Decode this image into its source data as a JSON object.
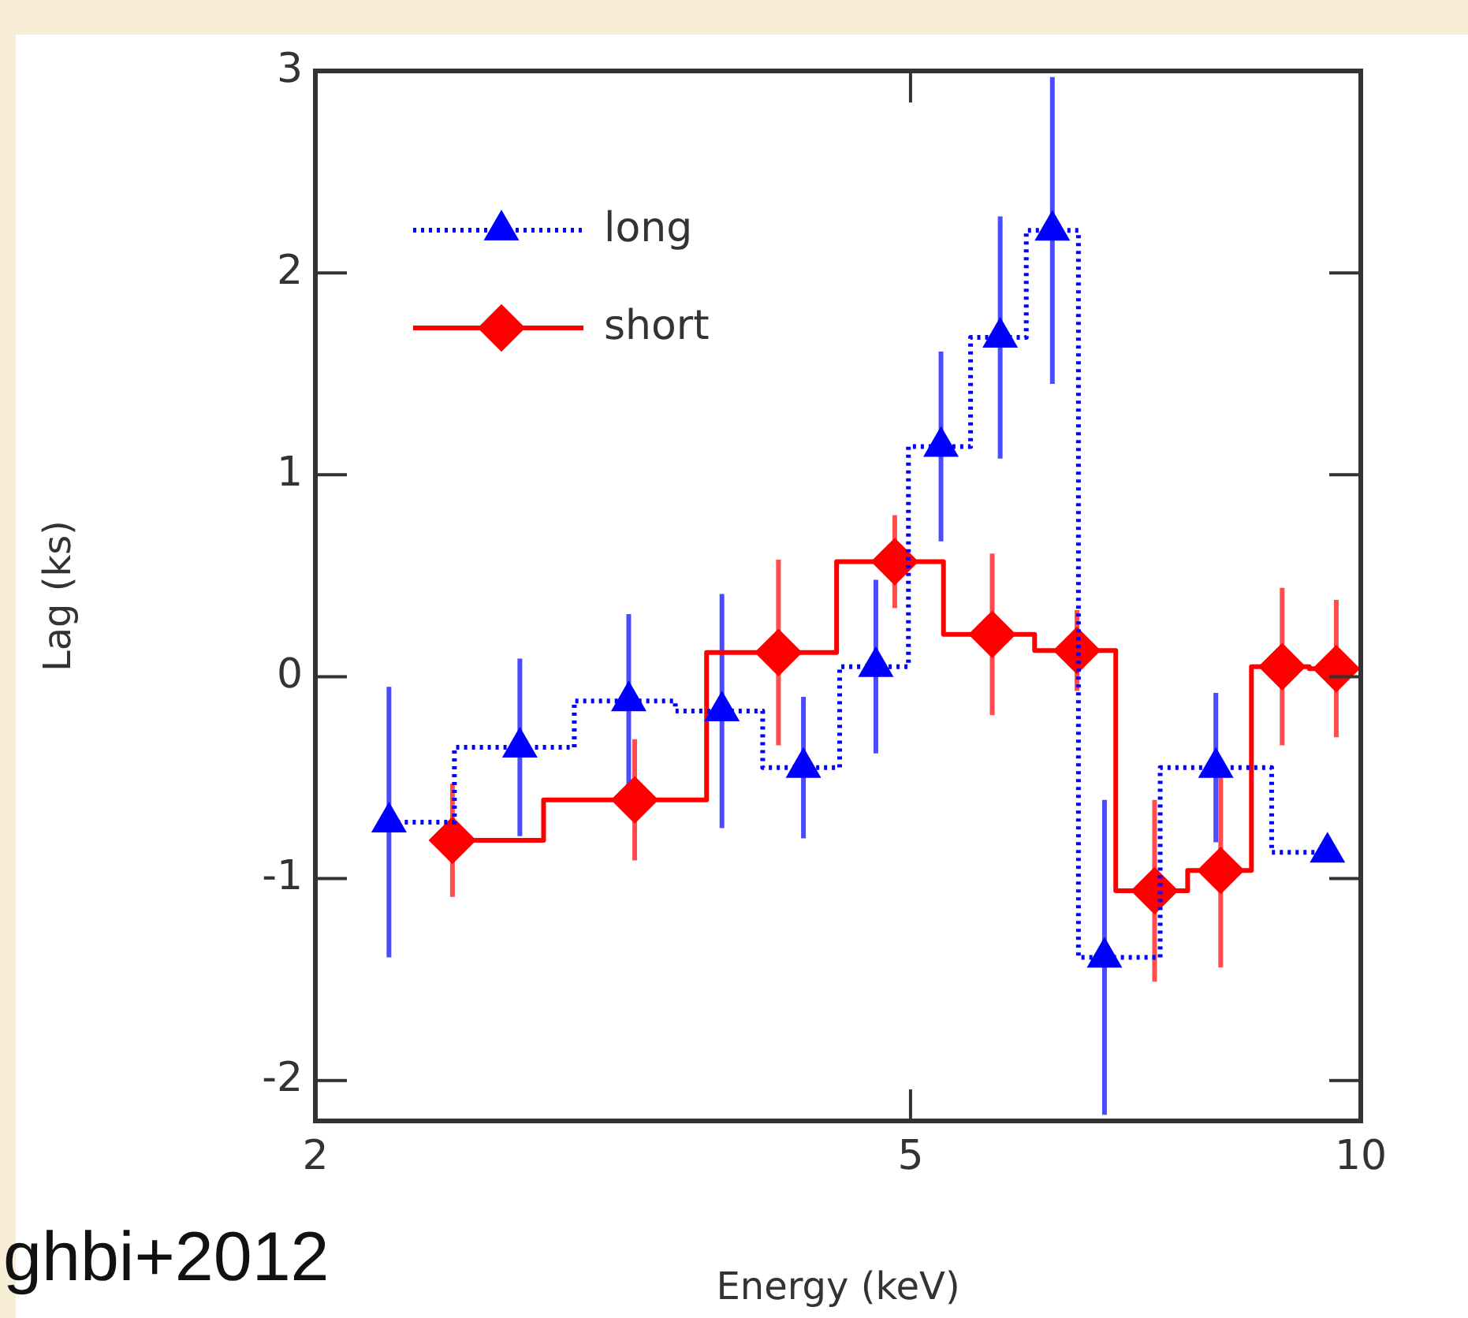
{
  "chart_data": {
    "type": "step",
    "xlabel": "Energy (keV)",
    "ylabel": "Lag (ks)",
    "log": "x",
    "xlim": [
      2,
      10
    ],
    "ylim": [
      -2.2,
      3
    ],
    "xticks": [
      2,
      5,
      10
    ],
    "yticks": [
      -2,
      -1,
      0,
      1,
      2,
      3
    ],
    "grid": false,
    "legend": "top left",
    "series": [
      {
        "name": "long",
        "color": "#0000ff",
        "marker": "triangle",
        "line_style": "dotted",
        "x": [
          2.24,
          2.74,
          3.24,
          3.74,
          4.24,
          4.74,
          5.24,
          5.74,
          6.22,
          6.74,
          8.0,
          9.5
        ],
        "values": [
          -0.72,
          -0.35,
          -0.12,
          -0.17,
          -0.45,
          0.05,
          1.14,
          1.68,
          2.21,
          -1.39,
          -0.45,
          -0.87
        ],
        "errors": [
          0.67,
          0.44,
          0.43,
          0.58,
          0.35,
          0.43,
          0.47,
          0.6,
          0.76,
          0.78,
          0.37,
          null
        ]
      },
      {
        "name": "short",
        "color": "#ff0000",
        "marker": "diamond",
        "line_style": "solid",
        "x": [
          2.47,
          3.27,
          4.08,
          4.88,
          5.67,
          6.46,
          7.28,
          8.06,
          8.86,
          9.63
        ],
        "values": [
          -0.81,
          -0.61,
          0.12,
          0.57,
          0.21,
          0.13,
          -1.06,
          -0.96,
          0.05,
          0.04
        ],
        "errors": [
          0.28,
          0.3,
          0.46,
          0.23,
          0.4,
          0.2,
          0.45,
          0.48,
          0.39,
          0.34
        ]
      }
    ],
    "annotations": [
      "ghbi+2012"
    ]
  }
}
